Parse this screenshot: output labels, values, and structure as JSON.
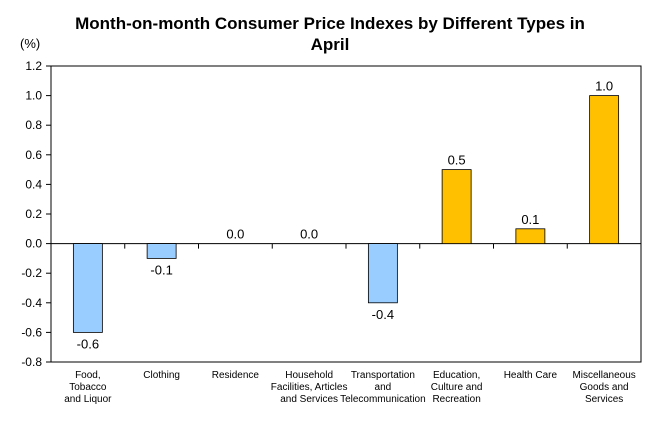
{
  "chart_data": {
    "type": "bar",
    "title_lines": [
      "Month-on-month Consumer Price Indexes by Different Types in",
      "April"
    ],
    "unit_label": "(%)",
    "categories": [
      [
        "Food,",
        "Tobacco",
        "and Liquor"
      ],
      [
        "Clothing"
      ],
      [
        "Residence"
      ],
      [
        "Household",
        "Facilities, Articles",
        "and Services"
      ],
      [
        "Transportation",
        "and",
        "Telecommunication"
      ],
      [
        "Education,",
        "Culture and",
        "Recreation"
      ],
      [
        "Health Care"
      ],
      [
        "Miscellaneous",
        "Goods and",
        "Services"
      ]
    ],
    "values": [
      -0.6,
      -0.1,
      0.0,
      0.0,
      -0.4,
      0.5,
      0.1,
      1.0
    ],
    "value_labels": [
      "-0.6",
      "-0.1",
      "0.0",
      "0.0",
      "-0.4",
      "0.5",
      "0.1",
      "1.0"
    ],
    "ylim": [
      -0.8,
      1.2
    ],
    "yticks": [
      1.2,
      1.0,
      0.8,
      0.6,
      0.4,
      0.2,
      0.0,
      -0.2,
      -0.4,
      -0.6,
      -0.8
    ],
    "ytick_labels": [
      "1.2",
      "1.0",
      "0.8",
      "0.6",
      "0.4",
      "0.2",
      "0.0",
      "-0.2",
      "-0.4",
      "-0.6",
      "-0.8"
    ],
    "grid": false,
    "legend": false,
    "colors": {
      "negative_fill": "#99CCFF",
      "positive_fill": "#FFC000",
      "bar_stroke": "#000000",
      "axis": "#000000"
    }
  }
}
